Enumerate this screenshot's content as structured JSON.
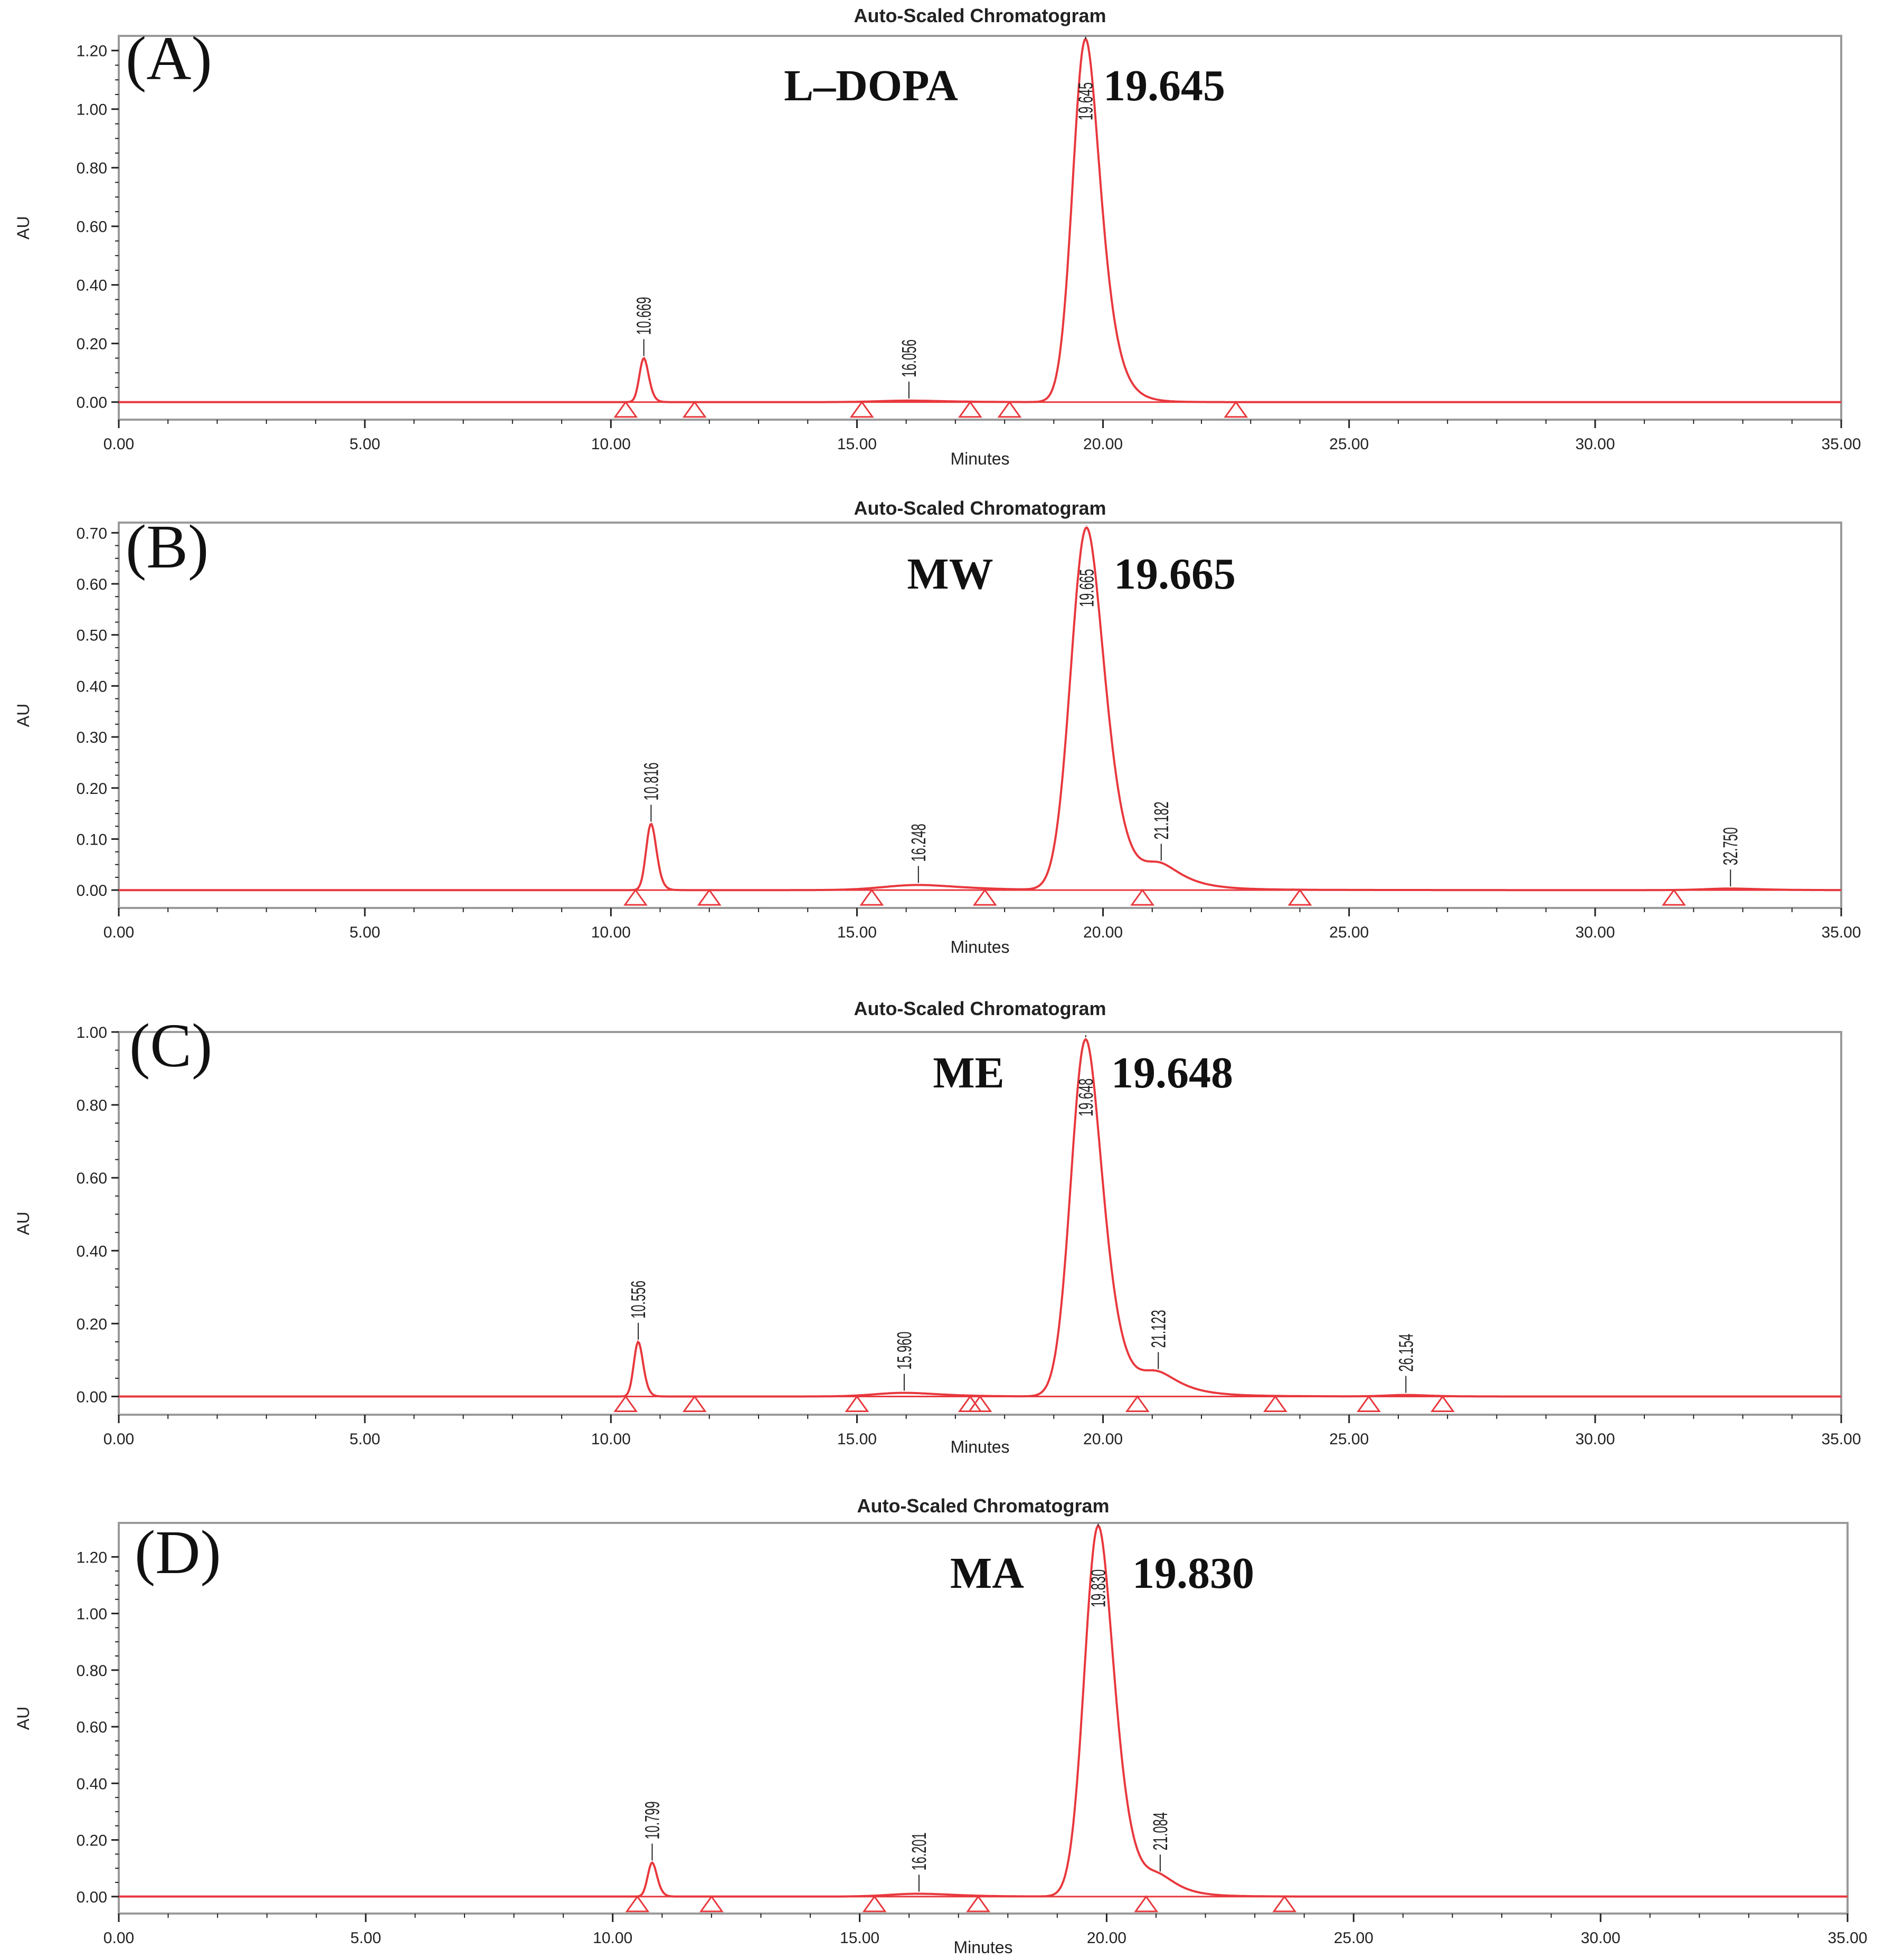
{
  "colors": {
    "trace": "#e8383d",
    "frame": "#9a9a9a",
    "axis_text": "#222222",
    "background": "#ffffff"
  },
  "chart_data": [
    {
      "type": "line",
      "panel_label": "(A)",
      "title": "Auto-Scaled Chromatogram",
      "xlabel": "Minutes",
      "ylabel": "AU",
      "xlim": [
        0,
        35
      ],
      "ylim": [
        -0.06,
        1.25
      ],
      "xticks": [
        0,
        5,
        10,
        15,
        20,
        25,
        30,
        35
      ],
      "xtick_labels": [
        "0.00",
        "5.00",
        "10.00",
        "15.00",
        "20.00",
        "25.00",
        "30.00",
        "35.00"
      ],
      "yticks": [
        0,
        0.2,
        0.4,
        0.6,
        0.8,
        1.0,
        1.2
      ],
      "ytick_labels": [
        "0.00",
        "0.20",
        "0.40",
        "0.60",
        "0.80",
        "1.00",
        "1.20"
      ],
      "annotation": {
        "compound": "L–DOPA",
        "retention_time": "19.645"
      },
      "peaks": [
        {
          "rt": 10.669,
          "label": "10.669",
          "height": 0.15,
          "sigma": 0.09,
          "tail": 0.35
        },
        {
          "rt": 16.056,
          "label": "16.056",
          "height": 0.005,
          "sigma": 0.6,
          "tail": 0.6
        },
        {
          "rt": 19.645,
          "label": "19.645",
          "height": 1.24,
          "sigma": 0.26,
          "tail": 0.55
        }
      ],
      "markers": [
        10.3,
        11.7,
        15.1,
        17.3,
        18.1,
        22.7
      ]
    },
    {
      "type": "line",
      "panel_label": "(B)",
      "title": "Auto-Scaled Chromatogram",
      "xlabel": "Minutes",
      "ylabel": "AU",
      "xlim": [
        0,
        35
      ],
      "ylim": [
        -0.035,
        0.72
      ],
      "xticks": [
        0,
        5,
        10,
        15,
        20,
        25,
        30,
        35
      ],
      "xtick_labels": [
        "0.00",
        "5.00",
        "10.00",
        "15.00",
        "20.00",
        "25.00",
        "30.00",
        "35.00"
      ],
      "yticks": [
        0,
        0.1,
        0.2,
        0.3,
        0.4,
        0.5,
        0.6,
        0.7
      ],
      "ytick_labels": [
        "0.00",
        "0.10",
        "0.20",
        "0.30",
        "0.40",
        "0.50",
        "0.60",
        "0.70"
      ],
      "annotation": {
        "compound": "MW",
        "retention_time": "19.665"
      },
      "peaks": [
        {
          "rt": 10.816,
          "label": "10.816",
          "height": 0.13,
          "sigma": 0.1,
          "tail": 0.35
        },
        {
          "rt": 16.248,
          "label": "16.248",
          "height": 0.01,
          "sigma": 0.7,
          "tail": 0.7
        },
        {
          "rt": 19.665,
          "label": "19.665",
          "height": 0.71,
          "sigma": 0.32,
          "tail": 0.5
        },
        {
          "rt": 21.182,
          "label": "21.182",
          "height": 0.045,
          "sigma": 0.35,
          "tail": 0.9
        },
        {
          "rt": 32.75,
          "label": "32.750",
          "height": 0.003,
          "sigma": 0.5,
          "tail": 0.5
        }
      ],
      "markers": [
        10.5,
        12.0,
        15.3,
        17.6,
        20.8,
        24.0,
        31.6
      ]
    },
    {
      "type": "line",
      "panel_label": "(C)",
      "title": "Auto-Scaled Chromatogram",
      "xlabel": "Minutes",
      "ylabel": "AU",
      "xlim": [
        0,
        35
      ],
      "ylim": [
        -0.05,
        1.0
      ],
      "xticks": [
        0,
        5,
        10,
        15,
        20,
        25,
        30,
        35
      ],
      "xtick_labels": [
        "0.00",
        "5.00",
        "10.00",
        "15.00",
        "20.00",
        "25.00",
        "30.00",
        "35.00"
      ],
      "yticks": [
        0,
        0.2,
        0.4,
        0.6,
        0.8,
        1.0
      ],
      "ytick_labels": [
        "0.00",
        "0.20",
        "0.40",
        "0.60",
        "0.80",
        "1.00"
      ],
      "annotation": {
        "compound": "ME",
        "retention_time": "19.648"
      },
      "peaks": [
        {
          "rt": 10.556,
          "label": "10.556",
          "height": 0.15,
          "sigma": 0.09,
          "tail": 0.35
        },
        {
          "rt": 15.96,
          "label": "15.960",
          "height": 0.01,
          "sigma": 0.6,
          "tail": 0.6
        },
        {
          "rt": 19.648,
          "label": "19.648",
          "height": 0.98,
          "sigma": 0.3,
          "tail": 0.5
        },
        {
          "rt": 21.123,
          "label": "21.123",
          "height": 0.06,
          "sigma": 0.35,
          "tail": 0.9
        },
        {
          "rt": 26.154,
          "label": "26.154",
          "height": 0.004,
          "sigma": 0.4,
          "tail": 0.4
        }
      ],
      "markers": [
        10.3,
        11.7,
        15.0,
        17.3,
        17.5,
        20.7,
        23.5,
        25.4,
        26.9
      ]
    },
    {
      "type": "line",
      "panel_label": "(D)",
      "title": "Auto-Scaled Chromatogram",
      "xlabel": "Minutes",
      "ylabel": "AU",
      "xlim": [
        0,
        35
      ],
      "ylim": [
        -0.06,
        1.32
      ],
      "xticks": [
        0,
        5,
        10,
        15,
        20,
        25,
        30,
        35
      ],
      "xtick_labels": [
        "0.00",
        "5.00",
        "10.00",
        "15.00",
        "20.00",
        "25.00",
        "30.00",
        "35.00"
      ],
      "yticks": [
        0,
        0.2,
        0.4,
        0.6,
        0.8,
        1.0,
        1.2
      ],
      "ytick_labels": [
        "0.00",
        "0.20",
        "0.40",
        "0.60",
        "0.80",
        "1.00",
        "1.20"
      ],
      "annotation": {
        "compound": "MA",
        "retention_time": "19.830"
      },
      "peaks": [
        {
          "rt": 10.799,
          "label": "10.799",
          "height": 0.12,
          "sigma": 0.09,
          "tail": 0.35
        },
        {
          "rt": 16.201,
          "label": "16.201",
          "height": 0.01,
          "sigma": 0.6,
          "tail": 0.6
        },
        {
          "rt": 19.83,
          "label": "19.830",
          "height": 1.31,
          "sigma": 0.28,
          "tail": 0.5
        },
        {
          "rt": 21.084,
          "label": "21.084",
          "height": 0.06,
          "sigma": 0.3,
          "tail": 0.8
        }
      ],
      "markers": [
        10.5,
        12.0,
        15.3,
        17.4,
        20.8,
        23.6
      ]
    }
  ]
}
